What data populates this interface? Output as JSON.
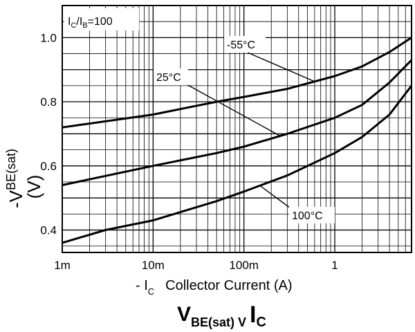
{
  "chart_data": {
    "type": "line",
    "title": {
      "main": "V",
      "sub1": "BE(sat)",
      "mid": " V ",
      "main2": "I",
      "sub2": "C"
    },
    "xlabel": {
      "pre": "- I",
      "sub": "C",
      "post": "Collector Current (A)"
    },
    "ylabel": {
      "pre": "-V",
      "sub": "BE(sat)",
      "unit": "(V)"
    },
    "condition": {
      "a": "I",
      "a_sub": "C",
      "slash": "/I",
      "b_sub": "B",
      "rest": "=100"
    },
    "x_scale": "log",
    "xlim": [
      0.001,
      7
    ],
    "ylim": [
      0.33,
      1.1
    ],
    "x_ticks": [
      {
        "value": 0.001,
        "label": "1m"
      },
      {
        "value": 0.01,
        "label": "10m"
      },
      {
        "value": 0.1,
        "label": "100m"
      },
      {
        "value": 1,
        "label": "1"
      }
    ],
    "y_ticks": [
      {
        "value": 0.4,
        "label": "0.4"
      },
      {
        "value": 0.6,
        "label": "0.6"
      },
      {
        "value": 0.8,
        "label": "0.8"
      },
      {
        "value": 1.0,
        "label": "1.0"
      }
    ],
    "grid": true,
    "series": [
      {
        "name": "-55°C",
        "x": [
          0.001,
          0.01,
          0.05,
          0.1,
          0.3,
          1,
          2,
          4,
          7
        ],
        "y": [
          0.72,
          0.76,
          0.8,
          0.815,
          0.84,
          0.88,
          0.91,
          0.955,
          1.0
        ]
      },
      {
        "name": "25°C",
        "x": [
          0.001,
          0.01,
          0.05,
          0.1,
          0.3,
          1,
          2,
          4,
          7
        ],
        "y": [
          0.54,
          0.6,
          0.64,
          0.66,
          0.7,
          0.75,
          0.79,
          0.86,
          0.93
        ]
      },
      {
        "name": "100°C",
        "x": [
          0.001,
          0.003,
          0.01,
          0.05,
          0.1,
          0.3,
          1,
          2,
          4,
          7
        ],
        "y": [
          0.36,
          0.4,
          0.43,
          0.49,
          0.52,
          0.57,
          0.64,
          0.69,
          0.76,
          0.85
        ]
      }
    ],
    "annotations": [
      {
        "series": "-55°C",
        "label": "-55°C"
      },
      {
        "series": "25°C",
        "label": "25°C"
      },
      {
        "series": "100°C",
        "label": "100°C"
      }
    ]
  }
}
